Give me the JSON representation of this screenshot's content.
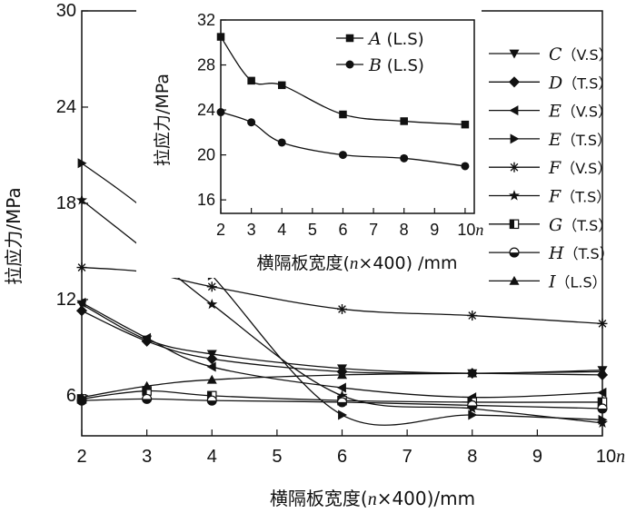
{
  "chart_data": [
    {
      "type": "line",
      "xlabel": "横隔板宽度(n×400)/mm",
      "ylabel": "拉应力/MPa",
      "xlim": [
        2,
        10
      ],
      "ylim": [
        3.5,
        30
      ],
      "xticks": [
        "2",
        "3",
        "4",
        "5",
        "6",
        "7",
        "8",
        "9",
        "10n"
      ],
      "yticks": [
        "6",
        "12",
        "18",
        "24",
        "30"
      ],
      "ytick_values": [
        6,
        12,
        18,
        24,
        30
      ],
      "legend_position": "right",
      "x": [
        2,
        3,
        4,
        6,
        8,
        10
      ],
      "series": [
        {
          "name": "C（V.S）",
          "letter": "C",
          "suffix": "（V.S）",
          "marker": "triangle-down",
          "values": [
            11.7,
            9.5,
            8.6,
            7.7,
            7.4,
            7.6
          ]
        },
        {
          "name": "D（T.S）",
          "letter": "D",
          "suffix": "（T.S）",
          "marker": "diamond",
          "values": [
            11.3,
            9.4,
            8.3,
            7.5,
            7.4,
            7.3
          ]
        },
        {
          "name": "E（V.S）",
          "letter": "E",
          "suffix": "（V.S）",
          "marker": "triangle-left",
          "values": [
            11.8,
            9.6,
            7.8,
            6.5,
            5.9,
            6.2
          ]
        },
        {
          "name": "E（T.S）",
          "letter": "E",
          "suffix": "（T.S）",
          "marker": "triangle-right",
          "values": [
            20.5,
            17.5,
            13.5,
            4.8,
            4.8,
            4.5
          ]
        },
        {
          "name": "F（V.S）",
          "letter": "F",
          "suffix": "（V.S）",
          "marker": "asterisk",
          "values": [
            14.0,
            13.7,
            12.8,
            11.4,
            11.0,
            10.5
          ]
        },
        {
          "name": "F（T.S）",
          "letter": "F",
          "suffix": "（T.S）",
          "marker": "star",
          "values": [
            18.2,
            15.0,
            11.7,
            6.0,
            5.2,
            4.3
          ]
        },
        {
          "name": "G（T.S）",
          "letter": "G",
          "suffix": "（T.S）",
          "marker": "square-half",
          "values": [
            5.8,
            6.3,
            6.0,
            5.7,
            5.6,
            5.6
          ]
        },
        {
          "name": "H（T.S）",
          "letter": "H",
          "suffix": "（T.S）",
          "marker": "circle-half",
          "values": [
            5.7,
            5.8,
            5.7,
            5.6,
            5.4,
            5.2
          ]
        },
        {
          "name": "I（L.S）",
          "letter": "I",
          "suffix": "（L.S）",
          "marker": "triangle-up",
          "values": [
            5.9,
            6.6,
            7.0,
            7.3,
            7.4,
            7.5
          ]
        }
      ]
    },
    {
      "type": "line",
      "xlabel": "横隔板宽度(n×400) /mm",
      "ylabel": "拉应力/MPa",
      "xlim": [
        2,
        10.3
      ],
      "ylim": [
        14.8,
        32
      ],
      "xticks": [
        "2",
        "3",
        "4",
        "5",
        "6",
        "7",
        "8",
        "9",
        "10n"
      ],
      "yticks": [
        "16",
        "20",
        "24",
        "28",
        "32"
      ],
      "ytick_values": [
        16,
        20,
        24,
        28,
        32
      ],
      "legend_position": "top",
      "x": [
        2,
        3,
        4,
        6,
        8,
        10
      ],
      "series": [
        {
          "name": "A (L.S)",
          "letter": "A",
          "suffix": " (L.S)",
          "marker": "square",
          "values": [
            30.5,
            26.6,
            26.2,
            23.6,
            23.0,
            22.7
          ]
        },
        {
          "name": "B (L.S)",
          "letter": "B",
          "suffix": " (L.S)",
          "marker": "circle",
          "values": [
            23.8,
            22.9,
            21.1,
            20.0,
            19.7,
            19.0
          ]
        }
      ]
    }
  ]
}
